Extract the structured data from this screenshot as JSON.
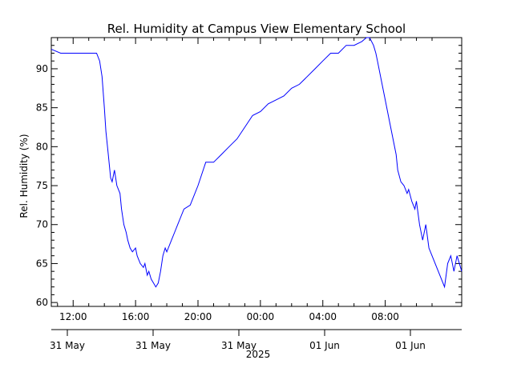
{
  "chart_data": {
    "type": "line",
    "title": "Rel. Humidity at Campus View Elementary School",
    "ylabel": "Rel. Humidity (%)",
    "ylim": [
      59.5,
      94.0
    ],
    "yticks": [
      60,
      65,
      70,
      75,
      80,
      85,
      90
    ],
    "xlim_hours": [
      -1.4,
      24.9
    ],
    "x_ticks_hours": [
      0,
      4,
      8,
      12,
      16,
      20
    ],
    "x_tick_labels": [
      "12:00",
      "16:00",
      "20:00",
      "00:00",
      "04:00",
      "08:00"
    ],
    "date_labels": [
      "31 May",
      "31 May",
      "31 May",
      "01 Jun",
      "01 Jun"
    ],
    "date_label_hours": [
      0,
      4,
      8,
      12,
      16
    ],
    "year_label": "2025",
    "grid": false,
    "series": [
      {
        "color": "#0000ff",
        "x_hours": [
          -1.4,
          -0.8,
          0.0,
          0.5,
          1.0,
          1.5,
          1.7,
          1.85,
          2.0,
          2.1,
          2.25,
          2.4,
          2.5,
          2.65,
          2.8,
          3.0,
          3.1,
          3.25,
          3.4,
          3.5,
          3.65,
          3.8,
          4.0,
          4.1,
          4.3,
          4.5,
          4.6,
          4.75,
          4.85,
          5.0,
          5.15,
          5.3,
          5.45,
          5.6,
          5.75,
          5.9,
          6.0,
          6.1,
          6.3,
          6.5,
          6.7,
          6.9,
          7.1,
          7.5,
          8.0,
          8.5,
          9.0,
          9.5,
          10.0,
          10.5,
          11.0,
          11.5,
          12.0,
          12.5,
          13.0,
          13.5,
          14.0,
          14.5,
          15.0,
          15.5,
          16.0,
          16.5,
          17.0,
          17.5,
          18.0,
          18.5,
          18.8,
          19.0,
          19.25,
          19.4,
          19.5,
          19.8,
          20.0,
          20.3,
          20.5,
          20.7,
          20.8,
          21.0,
          21.2,
          21.4,
          21.5,
          21.7,
          21.9,
          22.0,
          22.2,
          22.4,
          22.6,
          22.8,
          23.0,
          23.2,
          23.4,
          23.6,
          23.8,
          24.0,
          24.2,
          24.4,
          24.6,
          24.9
        ],
        "y": [
          92.5,
          92.0,
          92.0,
          92.0,
          92.0,
          92.0,
          91.0,
          89.0,
          85.0,
          82.0,
          79.0,
          76.0,
          75.5,
          77.0,
          75.0,
          74.0,
          72.0,
          70.0,
          69.0,
          68.0,
          67.0,
          66.5,
          67.0,
          66.0,
          65.0,
          64.5,
          65.0,
          63.5,
          64.0,
          63.0,
          62.5,
          62.0,
          62.5,
          64.0,
          66.0,
          67.0,
          66.5,
          67.0,
          68.0,
          69.0,
          70.0,
          71.0,
          72.0,
          72.5,
          75.0,
          78.0,
          78.0,
          79.0,
          80.0,
          81.0,
          82.5,
          84.0,
          84.5,
          85.5,
          86.0,
          86.5,
          87.5,
          88.0,
          89.0,
          90.0,
          91.0,
          92.0,
          92.0,
          93.0,
          93.0,
          93.5,
          94.0,
          94.0,
          93.0,
          92.0,
          91.0,
          88.0,
          86.0,
          83.0,
          81.0,
          79.0,
          77.0,
          75.5,
          75.0,
          74.0,
          74.5,
          73.0,
          72.0,
          73.0,
          70.0,
          68.0,
          70.0,
          67.0,
          66.0,
          65.0,
          64.0,
          63.0,
          62.0,
          65.0,
          66.0,
          64.0,
          66.0,
          64.0
        ]
      }
    ]
  }
}
